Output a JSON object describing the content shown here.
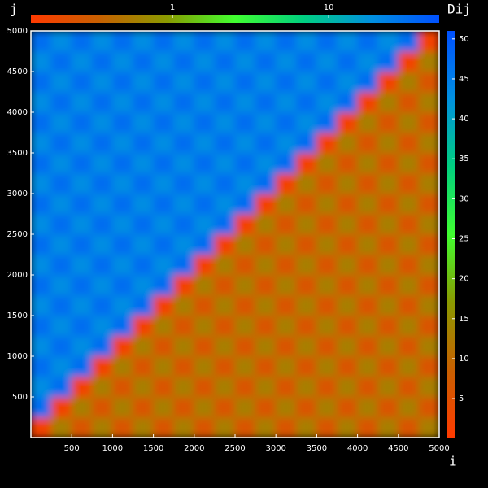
{
  "chart_data": {
    "type": "heatmap",
    "x_label": "i",
    "y_label": "j",
    "colorbar_label": "Dij",
    "xlim": [
      0,
      5000
    ],
    "ylim": [
      0,
      5000
    ],
    "xticks": [
      500,
      1000,
      1500,
      2000,
      2500,
      3000,
      3500,
      4000,
      4500,
      5000
    ],
    "yticks": [
      500,
      1000,
      1500,
      2000,
      2500,
      3000,
      3500,
      4000,
      4500,
      5000
    ],
    "colormap": [
      "#ff3a00",
      "#c86000",
      "#8a9a00",
      "#40ff30",
      "#00d080",
      "#0090e0",
      "#0050ff"
    ],
    "clim": [
      0.12,
      51
    ],
    "cticks": [
      5,
      10,
      15,
      20,
      25,
      30,
      35,
      40,
      45,
      50
    ],
    "top_colorbar": {
      "lim": [
        0.124,
        51
      ],
      "ticks": [
        1,
        10
      ],
      "log": true
    },
    "values": [
      [
        2,
        13,
        6,
        13,
        6,
        13,
        6,
        13,
        6,
        13,
        6,
        13,
        6,
        13,
        6,
        13,
        6,
        13,
        6,
        13
      ],
      [
        47,
        2,
        13,
        6,
        13,
        6,
        13,
        6,
        13,
        6,
        13,
        6,
        13,
        6,
        13,
        6,
        13,
        6,
        13,
        6
      ],
      [
        43,
        47,
        2,
        13,
        6,
        13,
        6,
        13,
        6,
        13,
        6,
        13,
        6,
        13,
        6,
        13,
        6,
        13,
        6,
        13
      ],
      [
        47,
        43,
        47,
        2,
        13,
        6,
        13,
        6,
        13,
        6,
        13,
        6,
        13,
        6,
        13,
        6,
        13,
        6,
        13,
        6
      ],
      [
        43,
        47,
        43,
        47,
        2,
        13,
        6,
        13,
        6,
        13,
        6,
        13,
        6,
        13,
        6,
        13,
        6,
        13,
        6,
        13
      ],
      [
        47,
        43,
        47,
        43,
        47,
        2,
        13,
        6,
        13,
        6,
        13,
        6,
        13,
        6,
        13,
        6,
        13,
        6,
        13,
        6
      ],
      [
        43,
        47,
        43,
        47,
        43,
        47,
        2,
        13,
        6,
        13,
        6,
        13,
        6,
        13,
        6,
        13,
        6,
        13,
        6,
        13
      ],
      [
        47,
        43,
        47,
        43,
        47,
        43,
        47,
        2,
        13,
        6,
        13,
        6,
        13,
        6,
        13,
        6,
        13,
        6,
        13,
        6
      ],
      [
        43,
        47,
        43,
        47,
        43,
        47,
        43,
        47,
        2,
        13,
        6,
        13,
        6,
        13,
        6,
        13,
        6,
        13,
        6,
        13
      ],
      [
        47,
        43,
        47,
        43,
        47,
        43,
        47,
        43,
        47,
        2,
        13,
        6,
        13,
        6,
        13,
        6,
        13,
        6,
        13,
        6
      ],
      [
        43,
        47,
        43,
        47,
        43,
        47,
        43,
        47,
        43,
        47,
        2,
        13,
        6,
        13,
        6,
        13,
        6,
        13,
        6,
        13
      ],
      [
        47,
        43,
        47,
        43,
        47,
        43,
        47,
        43,
        47,
        43,
        47,
        2,
        13,
        6,
        13,
        6,
        13,
        6,
        13,
        6
      ],
      [
        43,
        47,
        43,
        47,
        43,
        47,
        43,
        47,
        43,
        47,
        43,
        47,
        2,
        13,
        6,
        13,
        6,
        13,
        6,
        13
      ],
      [
        47,
        43,
        47,
        43,
        47,
        43,
        47,
        43,
        47,
        43,
        47,
        43,
        47,
        2,
        13,
        6,
        13,
        6,
        13,
        6
      ],
      [
        43,
        47,
        43,
        47,
        43,
        47,
        43,
        47,
        43,
        47,
        43,
        47,
        43,
        47,
        2,
        13,
        6,
        13,
        6,
        13
      ],
      [
        47,
        43,
        47,
        43,
        47,
        43,
        47,
        43,
        47,
        43,
        47,
        43,
        47,
        43,
        47,
        2,
        13,
        6,
        13,
        6
      ],
      [
        43,
        47,
        43,
        47,
        43,
        47,
        43,
        47,
        43,
        47,
        43,
        47,
        43,
        47,
        43,
        47,
        2,
        13,
        6,
        13
      ],
      [
        47,
        43,
        47,
        43,
        47,
        43,
        47,
        43,
        47,
        43,
        47,
        43,
        47,
        43,
        47,
        43,
        47,
        2,
        13,
        6
      ],
      [
        43,
        47,
        43,
        47,
        43,
        47,
        43,
        47,
        43,
        47,
        43,
        47,
        43,
        47,
        43,
        47,
        43,
        47,
        2,
        13
      ],
      [
        47,
        43,
        47,
        43,
        47,
        43,
        47,
        43,
        47,
        43,
        47,
        43,
        47,
        43,
        47,
        43,
        47,
        43,
        47,
        2
      ]
    ]
  }
}
